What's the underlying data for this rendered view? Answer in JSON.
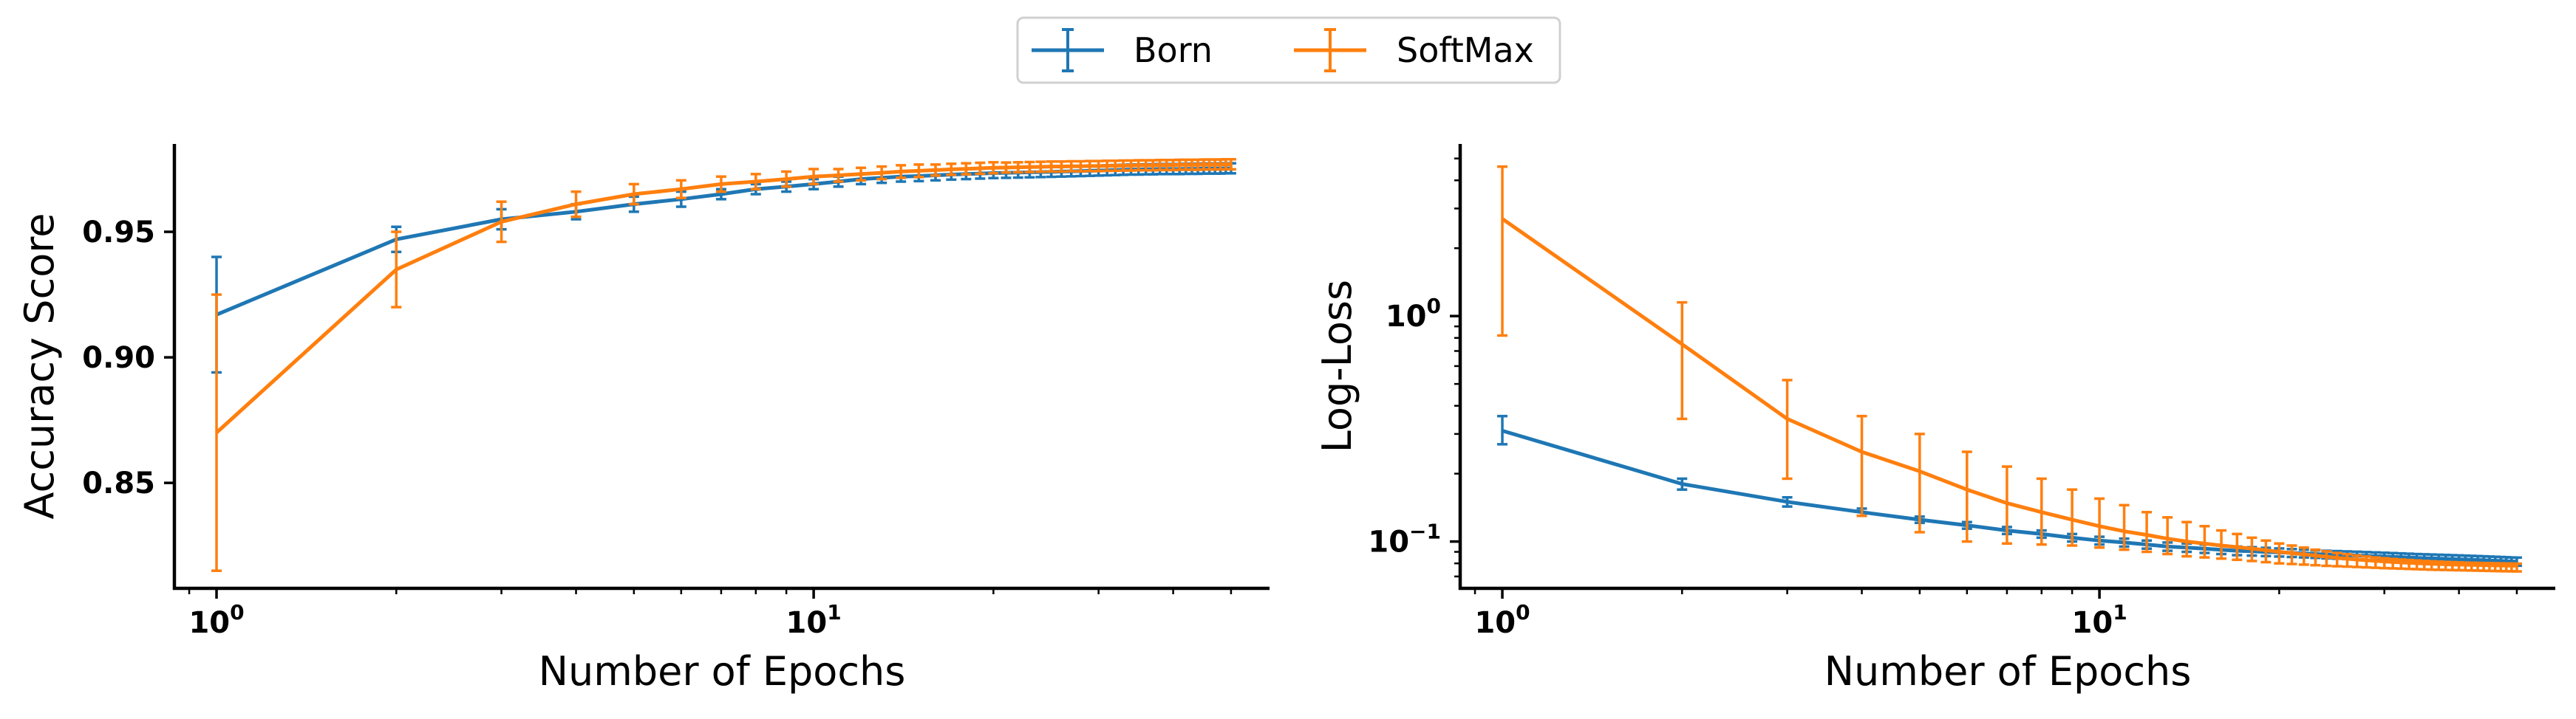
{
  "legend": {
    "entries": [
      {
        "label": "Born",
        "color": "#1f77b4"
      },
      {
        "label": "SoftMax",
        "color": "#ff7f0e"
      }
    ]
  },
  "chart_data": [
    {
      "type": "line",
      "xlabel": "Number of Epochs",
      "ylabel": "Accuracy Score",
      "xscale": "log",
      "yscale": "linear",
      "xlim": [
        0.85,
        58
      ],
      "ylim": [
        0.808,
        0.985
      ],
      "x_ticks": [
        {
          "value": 1,
          "base": "10",
          "exp": "0"
        },
        {
          "value": 10,
          "base": "10",
          "exp": "1"
        }
      ],
      "y_ticks": [
        {
          "value": 0.85,
          "label": "0.85"
        },
        {
          "value": 0.9,
          "label": "0.90"
        },
        {
          "value": 0.95,
          "label": "0.95"
        }
      ],
      "grid": false,
      "x": [
        1,
        2,
        3,
        4,
        5,
        6,
        7,
        8,
        9,
        10,
        11,
        12,
        13,
        14,
        15,
        16,
        17,
        18,
        19,
        20,
        21,
        22,
        23,
        24,
        25,
        26,
        27,
        28,
        29,
        30,
        31,
        32,
        33,
        34,
        35,
        36,
        37,
        38,
        39,
        40,
        41,
        42,
        43,
        44,
        45,
        46,
        47,
        48,
        49,
        50
      ],
      "series": [
        {
          "name": "Born",
          "color": "#1f77b4",
          "values": [
            0.917,
            0.947,
            0.955,
            0.958,
            0.961,
            0.963,
            0.965,
            0.967,
            0.968,
            0.969,
            0.97,
            0.971,
            0.9715,
            0.972,
            0.9722,
            0.9725,
            0.9728,
            0.973,
            0.9732,
            0.9734,
            0.9735,
            0.9736,
            0.9737,
            0.9738,
            0.9739,
            0.974,
            0.9741,
            0.9742,
            0.9743,
            0.9744,
            0.9745,
            0.9746,
            0.9747,
            0.9748,
            0.9748,
            0.9749,
            0.9749,
            0.975,
            0.975,
            0.975,
            0.975,
            0.9751,
            0.9751,
            0.9751,
            0.9752,
            0.9752,
            0.9752,
            0.9752,
            0.9753,
            0.9753
          ],
          "errors": [
            0.023,
            0.005,
            0.004,
            0.003,
            0.003,
            0.003,
            0.002,
            0.002,
            0.002,
            0.002,
            0.002,
            0.002,
            0.002,
            0.002,
            0.002,
            0.002,
            0.002,
            0.002,
            0.002,
            0.002,
            0.002,
            0.002,
            0.002,
            0.002,
            0.002,
            0.002,
            0.002,
            0.002,
            0.002,
            0.002,
            0.002,
            0.002,
            0.002,
            0.002,
            0.002,
            0.002,
            0.002,
            0.002,
            0.002,
            0.002,
            0.002,
            0.002,
            0.002,
            0.002,
            0.002,
            0.002,
            0.002,
            0.002,
            0.002,
            0.002
          ]
        },
        {
          "name": "SoftMax",
          "color": "#ff7f0e",
          "values": [
            0.87,
            0.935,
            0.954,
            0.961,
            0.965,
            0.967,
            0.969,
            0.97,
            0.971,
            0.972,
            0.9725,
            0.973,
            0.9735,
            0.974,
            0.9743,
            0.9746,
            0.9749,
            0.9751,
            0.9753,
            0.9755,
            0.9756,
            0.9757,
            0.9758,
            0.9759,
            0.976,
            0.976,
            0.9761,
            0.9761,
            0.9762,
            0.9762,
            0.9763,
            0.9763,
            0.9764,
            0.9764,
            0.9765,
            0.9765,
            0.9765,
            0.9766,
            0.9766,
            0.9766,
            0.9767,
            0.9767,
            0.9767,
            0.9767,
            0.9768,
            0.9768,
            0.9768,
            0.9768,
            0.9769,
            0.9769
          ],
          "errors": [
            0.055,
            0.015,
            0.008,
            0.005,
            0.004,
            0.0035,
            0.003,
            0.003,
            0.003,
            0.003,
            0.0025,
            0.0025,
            0.0025,
            0.0025,
            0.0025,
            0.0022,
            0.0022,
            0.0022,
            0.0022,
            0.0022,
            0.002,
            0.002,
            0.002,
            0.002,
            0.002,
            0.002,
            0.002,
            0.002,
            0.002,
            0.002,
            0.002,
            0.002,
            0.002,
            0.002,
            0.002,
            0.002,
            0.002,
            0.002,
            0.002,
            0.002,
            0.002,
            0.002,
            0.002,
            0.002,
            0.002,
            0.002,
            0.002,
            0.002,
            0.002,
            0.002
          ]
        }
      ]
    },
    {
      "type": "line",
      "xlabel": "Number of Epochs",
      "ylabel": "Log-Loss",
      "xscale": "log",
      "yscale": "log",
      "xlim": [
        0.85,
        58
      ],
      "ylim": [
        0.062,
        5.8
      ],
      "x_ticks": [
        {
          "value": 1,
          "base": "10",
          "exp": "0"
        },
        {
          "value": 10,
          "base": "10",
          "exp": "1"
        }
      ],
      "y_ticks": [
        {
          "value": 0.1,
          "base": "10",
          "exp": "−1"
        },
        {
          "value": 1,
          "base": "10",
          "exp": "0"
        }
      ],
      "grid": false,
      "x": [
        1,
        2,
        3,
        4,
        5,
        6,
        7,
        8,
        9,
        10,
        11,
        12,
        13,
        14,
        15,
        16,
        17,
        18,
        19,
        20,
        21,
        22,
        23,
        24,
        25,
        26,
        27,
        28,
        29,
        30,
        31,
        32,
        33,
        34,
        35,
        36,
        37,
        38,
        39,
        40,
        41,
        42,
        43,
        44,
        45,
        46,
        47,
        48,
        49,
        50
      ],
      "series": [
        {
          "name": "Born",
          "color": "#1f77b4",
          "values": [
            0.31,
            0.18,
            0.15,
            0.135,
            0.125,
            0.118,
            0.112,
            0.108,
            0.104,
            0.101,
            0.099,
            0.097,
            0.095,
            0.094,
            0.093,
            0.092,
            0.091,
            0.0905,
            0.09,
            0.0895,
            0.089,
            0.0885,
            0.088,
            0.0876,
            0.0873,
            0.087,
            0.0867,
            0.0864,
            0.0861,
            0.0858,
            0.0855,
            0.0852,
            0.0849,
            0.0846,
            0.0844,
            0.0842,
            0.084,
            0.0838,
            0.0836,
            0.0834,
            0.0832,
            0.083,
            0.0828,
            0.0826,
            0.0824,
            0.0822,
            0.082,
            0.0818,
            0.0816,
            0.0815
          ],
          "lower": [
            0.27,
            0.17,
            0.143,
            0.13,
            0.121,
            0.114,
            0.108,
            0.104,
            0.1,
            0.097,
            0.095,
            0.093,
            0.091,
            0.09,
            0.089,
            0.088,
            0.087,
            0.0866,
            0.0862,
            0.0858,
            0.0854,
            0.085,
            0.0846,
            0.0842,
            0.0839,
            0.0836,
            0.0833,
            0.083,
            0.0827,
            0.0824,
            0.0821,
            0.0818,
            0.0815,
            0.0812,
            0.081,
            0.0808,
            0.0806,
            0.0804,
            0.0802,
            0.08,
            0.0798,
            0.0796,
            0.0794,
            0.0792,
            0.079,
            0.0788,
            0.0786,
            0.0784,
            0.0782,
            0.0781
          ],
          "upper": [
            0.36,
            0.19,
            0.157,
            0.14,
            0.129,
            0.122,
            0.116,
            0.112,
            0.108,
            0.105,
            0.103,
            0.101,
            0.099,
            0.098,
            0.097,
            0.096,
            0.095,
            0.0944,
            0.0938,
            0.0932,
            0.0926,
            0.092,
            0.0914,
            0.091,
            0.0907,
            0.0904,
            0.0901,
            0.0898,
            0.0895,
            0.0892,
            0.0889,
            0.0886,
            0.0883,
            0.088,
            0.0878,
            0.0876,
            0.0874,
            0.0872,
            0.087,
            0.0868,
            0.0866,
            0.0864,
            0.0862,
            0.086,
            0.0858,
            0.0856,
            0.0854,
            0.0852,
            0.085,
            0.0849
          ]
        },
        {
          "name": "SoftMax",
          "color": "#ff7f0e",
          "values": [
            2.7,
            0.75,
            0.35,
            0.25,
            0.205,
            0.17,
            0.148,
            0.135,
            0.125,
            0.117,
            0.111,
            0.107,
            0.103,
            0.1,
            0.098,
            0.096,
            0.0945,
            0.093,
            0.0915,
            0.09,
            0.0888,
            0.0877,
            0.0866,
            0.0856,
            0.0847,
            0.0839,
            0.0832,
            0.0826,
            0.0821,
            0.0816,
            0.0812,
            0.0808,
            0.0805,
            0.0802,
            0.0799,
            0.0797,
            0.0795,
            0.0793,
            0.0791,
            0.079,
            0.0789,
            0.0788,
            0.0787,
            0.0786,
            0.0785,
            0.0784,
            0.0783,
            0.0782,
            0.0782,
            0.0781
          ],
          "lower": [
            0.82,
            0.35,
            0.19,
            0.13,
            0.11,
            0.1,
            0.098,
            0.097,
            0.096,
            0.094,
            0.092,
            0.09,
            0.088,
            0.086,
            0.085,
            0.084,
            0.083,
            0.082,
            0.081,
            0.08,
            0.0795,
            0.079,
            0.0785,
            0.078,
            0.0777,
            0.0774,
            0.0771,
            0.0768,
            0.0765,
            0.0762,
            0.076,
            0.0758,
            0.0756,
            0.0754,
            0.0752,
            0.075,
            0.0749,
            0.0748,
            0.0747,
            0.0746,
            0.0745,
            0.0744,
            0.0743,
            0.0742,
            0.0741,
            0.074,
            0.0739,
            0.0738,
            0.0738,
            0.0737
          ],
          "upper": [
            4.6,
            1.15,
            0.52,
            0.36,
            0.3,
            0.25,
            0.215,
            0.19,
            0.17,
            0.155,
            0.145,
            0.135,
            0.128,
            0.122,
            0.117,
            0.112,
            0.108,
            0.104,
            0.101,
            0.098,
            0.096,
            0.094,
            0.092,
            0.0905,
            0.089,
            0.0878,
            0.0867,
            0.0858,
            0.085,
            0.0843,
            0.0837,
            0.0832,
            0.0828,
            0.0824,
            0.082,
            0.0817,
            0.0814,
            0.0812,
            0.081,
            0.0808,
            0.0806,
            0.0805,
            0.0804,
            0.0803,
            0.0802,
            0.0801,
            0.08,
            0.0799,
            0.0799,
            0.0798
          ]
        }
      ]
    }
  ]
}
